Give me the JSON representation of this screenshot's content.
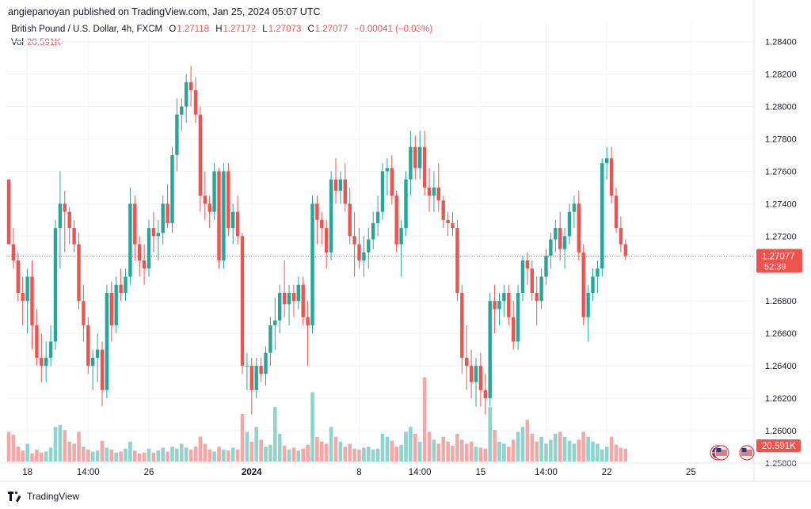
{
  "header": {
    "publisher_line": "angiepanoyan published on TradingView.com, Jan 25, 2024 05:07 UTC"
  },
  "legend": {
    "symbol": "British Pound / U.S. Dollar, 4h, FXCM",
    "o_label": "O",
    "o_value": "1.27118",
    "h_label": "H",
    "h_value": "1.27172",
    "l_label": "L",
    "l_value": "1.27073",
    "c_label": "C",
    "c_value": "1.27077",
    "change": "−0.00041 (−0.03%)",
    "vol_label": "Vol",
    "vol_value": "20.591K"
  },
  "price_badge": {
    "price": "1.27077",
    "countdown": "52:39"
  },
  "volume_badge": {
    "value": "20.591K"
  },
  "footer": {
    "brand": "TradingView"
  },
  "colors": {
    "up": "#26a69a",
    "down": "#ef5350",
    "up_volume": "#8fd3cc",
    "down_volume": "#f4a7a4",
    "grid": "#f0f3fa"
  },
  "icons": [
    "flag-uk-icon",
    "flag-us-icon"
  ],
  "chart_data": {
    "type": "candlestick",
    "ylim": [
      1.258,
      1.2852
    ],
    "yticks": [
      1.26,
      1.262,
      1.264,
      1.266,
      1.268,
      1.272,
      1.274,
      1.276,
      1.278,
      1.28,
      1.282,
      1.284
    ],
    "ytick_labels": [
      "1.26000",
      "1.26200",
      "1.26400",
      "1.26600",
      "1.26800",
      "1.27200",
      "1.27400",
      "1.27600",
      "1.27800",
      "1.28000",
      "1.28200",
      "1.28400"
    ],
    "y_partial_label": "1.25800",
    "last_price": 1.27077,
    "xticks": [
      {
        "label": "18",
        "index": 4
      },
      {
        "label": "14:00",
        "index": 17
      },
      {
        "label": "26",
        "index": 30
      },
      {
        "label": "2024",
        "index": 52,
        "bold": true
      },
      {
        "label": "8",
        "index": 75
      },
      {
        "label": "14:00",
        "index": 88
      },
      {
        "label": "15",
        "index": 101
      },
      {
        "label": "14:00",
        "index": 115
      },
      {
        "label": "22",
        "index": 128
      },
      {
        "label": "25",
        "index": 146
      }
    ],
    "candles": [
      [
        1.2755,
        1.2755,
        1.2715,
        1.2715
      ],
      [
        1.2715,
        1.2725,
        1.27,
        1.2705
      ],
      [
        1.2705,
        1.271,
        1.268,
        1.2685
      ],
      [
        1.2685,
        1.2695,
        1.2665,
        1.268
      ],
      [
        1.268,
        1.27,
        1.266,
        1.2695
      ],
      [
        1.2695,
        1.2705,
        1.265,
        1.2665
      ],
      [
        1.2665,
        1.2675,
        1.264,
        1.2645
      ],
      [
        1.2645,
        1.266,
        1.263,
        1.264
      ],
      [
        1.264,
        1.2655,
        1.263,
        1.2645
      ],
      [
        1.2645,
        1.2665,
        1.264,
        1.2655
      ],
      [
        1.2655,
        1.273,
        1.265,
        1.2725
      ],
      [
        1.2725,
        1.276,
        1.27,
        1.274
      ],
      [
        1.274,
        1.2748,
        1.271,
        1.2735
      ],
      [
        1.2735,
        1.2738,
        1.2715,
        1.2725
      ],
      [
        1.2725,
        1.273,
        1.271,
        1.2715
      ],
      [
        1.2715,
        1.2722,
        1.2675,
        1.268
      ],
      [
        1.268,
        1.269,
        1.2655,
        1.2665
      ],
      [
        1.2665,
        1.267,
        1.2635,
        1.264
      ],
      [
        1.264,
        1.265,
        1.2625,
        1.2645
      ],
      [
        1.2645,
        1.266,
        1.263,
        1.265
      ],
      [
        1.265,
        1.2655,
        1.2615,
        1.2625
      ],
      [
        1.2625,
        1.269,
        1.262,
        1.2685
      ],
      [
        1.2685,
        1.2692,
        1.2655,
        1.2665
      ],
      [
        1.2665,
        1.2695,
        1.266,
        1.269
      ],
      [
        1.269,
        1.27,
        1.268,
        1.2685
      ],
      [
        1.2685,
        1.27,
        1.268,
        1.2695
      ],
      [
        1.2695,
        1.275,
        1.269,
        1.274
      ],
      [
        1.274,
        1.2745,
        1.2705,
        1.2715
      ],
      [
        1.2715,
        1.272,
        1.2695,
        1.2705
      ],
      [
        1.2705,
        1.2715,
        1.269,
        1.27
      ],
      [
        1.27,
        1.273,
        1.2695,
        1.2725
      ],
      [
        1.2725,
        1.2735,
        1.271,
        1.272
      ],
      [
        1.272,
        1.273,
        1.2705,
        1.2722
      ],
      [
        1.2722,
        1.2745,
        1.2715,
        1.274
      ],
      [
        1.274,
        1.2752,
        1.2725,
        1.2728
      ],
      [
        1.2728,
        1.2775,
        1.2722,
        1.277
      ],
      [
        1.277,
        1.2805,
        1.276,
        1.2795
      ],
      [
        1.2795,
        1.2805,
        1.2785,
        1.28
      ],
      [
        1.28,
        1.282,
        1.279,
        1.2815
      ],
      [
        1.2815,
        1.2825,
        1.28,
        1.281
      ],
      [
        1.281,
        1.2818,
        1.279,
        1.2795
      ],
      [
        1.2795,
        1.28,
        1.2735,
        1.2745
      ],
      [
        1.2745,
        1.276,
        1.273,
        1.274
      ],
      [
        1.274,
        1.2745,
        1.2725,
        1.2735
      ],
      [
        1.2735,
        1.2765,
        1.273,
        1.276
      ],
      [
        1.276,
        1.2762,
        1.27,
        1.2705
      ],
      [
        1.2705,
        1.2765,
        1.27,
        1.276
      ],
      [
        1.276,
        1.2765,
        1.272,
        1.2725
      ],
      [
        1.2725,
        1.274,
        1.2715,
        1.2735
      ],
      [
        1.2735,
        1.2745,
        1.2715,
        1.272
      ],
      [
        1.272,
        1.2722,
        1.2635,
        1.264
      ],
      [
        1.264,
        1.2648,
        1.2625,
        1.264
      ],
      [
        1.264,
        1.2645,
        1.261,
        1.2625
      ],
      [
        1.2625,
        1.2645,
        1.262,
        1.264
      ],
      [
        1.264,
        1.2645,
        1.263,
        1.2635
      ],
      [
        1.2635,
        1.2652,
        1.2628,
        1.2648
      ],
      [
        1.2648,
        1.267,
        1.264,
        1.2665
      ],
      [
        1.2665,
        1.2682,
        1.265,
        1.2668
      ],
      [
        1.2668,
        1.269,
        1.266,
        1.2685
      ],
      [
        1.2685,
        1.2705,
        1.267,
        1.2678
      ],
      [
        1.2678,
        1.269,
        1.2665,
        1.2685
      ],
      [
        1.2685,
        1.269,
        1.267,
        1.268
      ],
      [
        1.268,
        1.2695,
        1.2675,
        1.269
      ],
      [
        1.269,
        1.2695,
        1.2665,
        1.267
      ],
      [
        1.267,
        1.268,
        1.264,
        1.2665
      ],
      [
        1.2665,
        1.2745,
        1.266,
        1.274
      ],
      [
        1.274,
        1.2745,
        1.2715,
        1.273
      ],
      [
        1.273,
        1.2735,
        1.2715,
        1.2725
      ],
      [
        1.2725,
        1.273,
        1.27,
        1.271
      ],
      [
        1.271,
        1.276,
        1.2705,
        1.2755
      ],
      [
        1.2755,
        1.2768,
        1.274,
        1.2748
      ],
      [
        1.2748,
        1.276,
        1.274,
        1.2755
      ],
      [
        1.2755,
        1.2765,
        1.2735,
        1.274
      ],
      [
        1.274,
        1.275,
        1.2715,
        1.272
      ],
      [
        1.272,
        1.2735,
        1.2695,
        1.2715
      ],
      [
        1.2715,
        1.2725,
        1.27,
        1.2705
      ],
      [
        1.2705,
        1.272,
        1.2695,
        1.271
      ],
      [
        1.271,
        1.2725,
        1.27,
        1.2718
      ],
      [
        1.2718,
        1.2735,
        1.2712,
        1.2728
      ],
      [
        1.2728,
        1.2745,
        1.272,
        1.2735
      ],
      [
        1.2735,
        1.2765,
        1.273,
        1.276
      ],
      [
        1.276,
        1.2768,
        1.2745,
        1.2762
      ],
      [
        1.2762,
        1.277,
        1.274,
        1.2745
      ],
      [
        1.2745,
        1.2748,
        1.271,
        1.2715
      ],
      [
        1.2715,
        1.273,
        1.2695,
        1.2725
      ],
      [
        1.2725,
        1.276,
        1.272,
        1.2755
      ],
      [
        1.2755,
        1.2785,
        1.2745,
        1.2775
      ],
      [
        1.2775,
        1.2782,
        1.2755,
        1.2762
      ],
      [
        1.2762,
        1.2785,
        1.2755,
        1.2775
      ],
      [
        1.2775,
        1.2785,
        1.2745,
        1.275
      ],
      [
        1.275,
        1.2762,
        1.2735,
        1.2745
      ],
      [
        1.2745,
        1.276,
        1.2735,
        1.275
      ],
      [
        1.275,
        1.2765,
        1.2735,
        1.2742
      ],
      [
        1.2742,
        1.2745,
        1.2725,
        1.273
      ],
      [
        1.273,
        1.2735,
        1.272,
        1.2728
      ],
      [
        1.2728,
        1.2735,
        1.272,
        1.2725
      ],
      [
        1.2725,
        1.273,
        1.268,
        1.2685
      ],
      [
        1.2685,
        1.269,
        1.2635,
        1.2645
      ],
      [
        1.2645,
        1.2665,
        1.2625,
        1.264
      ],
      [
        1.264,
        1.265,
        1.262,
        1.263
      ],
      [
        1.263,
        1.2645,
        1.2615,
        1.264
      ],
      [
        1.264,
        1.2648,
        1.2615,
        1.2625
      ],
      [
        1.2625,
        1.2635,
        1.261,
        1.262
      ],
      [
        1.262,
        1.2685,
        1.2615,
        1.268
      ],
      [
        1.268,
        1.269,
        1.266,
        1.2675
      ],
      [
        1.2675,
        1.2685,
        1.2665,
        1.268
      ],
      [
        1.268,
        1.269,
        1.267,
        1.2685
      ],
      [
        1.2685,
        1.269,
        1.2665,
        1.267
      ],
      [
        1.267,
        1.268,
        1.265,
        1.2655
      ],
      [
        1.2655,
        1.269,
        1.265,
        1.2685
      ],
      [
        1.2685,
        1.2708,
        1.268,
        1.2705
      ],
      [
        1.2705,
        1.271,
        1.269,
        1.27
      ],
      [
        1.27,
        1.2705,
        1.268,
        1.2685
      ],
      [
        1.2685,
        1.2695,
        1.2665,
        1.268
      ],
      [
        1.268,
        1.27,
        1.2675,
        1.2695
      ],
      [
        1.2695,
        1.2712,
        1.269,
        1.2708
      ],
      [
        1.2708,
        1.2722,
        1.27,
        1.2718
      ],
      [
        1.2718,
        1.273,
        1.271,
        1.2725
      ],
      [
        1.2725,
        1.2735,
        1.2705,
        1.2712
      ],
      [
        1.2712,
        1.2725,
        1.27,
        1.272
      ],
      [
        1.272,
        1.274,
        1.2715,
        1.2735
      ],
      [
        1.2735,
        1.2745,
        1.2725,
        1.274
      ],
      [
        1.274,
        1.2748,
        1.2705,
        1.271
      ],
      [
        1.271,
        1.2715,
        1.2665,
        1.267
      ],
      [
        1.267,
        1.269,
        1.2655,
        1.2685
      ],
      [
        1.2685,
        1.27,
        1.268,
        1.2695
      ],
      [
        1.2695,
        1.2705,
        1.2685,
        1.27
      ],
      [
        1.27,
        1.2768,
        1.2695,
        1.2765
      ],
      [
        1.2765,
        1.2775,
        1.2755,
        1.2768
      ],
      [
        1.2768,
        1.2775,
        1.274,
        1.2745
      ],
      [
        1.2745,
        1.275,
        1.2722,
        1.2725
      ],
      [
        1.2725,
        1.2732,
        1.271,
        1.2715
      ],
      [
        1.2715,
        1.2718,
        1.2705,
        1.2708
      ]
    ],
    "volumes": [
      0.3,
      0.27,
      0.15,
      0.11,
      0.18,
      0.08,
      0.12,
      0.09,
      0.1,
      0.14,
      0.35,
      0.37,
      0.32,
      0.2,
      0.18,
      0.3,
      0.15,
      0.12,
      0.1,
      0.11,
      0.21,
      0.14,
      0.12,
      0.09,
      0.1,
      0.13,
      0.2,
      0.11,
      0.08,
      0.09,
      0.13,
      0.09,
      0.11,
      0.14,
      0.1,
      0.15,
      0.13,
      0.18,
      0.14,
      0.12,
      0.15,
      0.25,
      0.18,
      0.12,
      0.1,
      0.15,
      0.12,
      0.11,
      0.14,
      0.12,
      0.48,
      0.3,
      0.2,
      0.35,
      0.22,
      0.15,
      0.17,
      0.55,
      0.28,
      0.16,
      0.12,
      0.14,
      0.11,
      0.13,
      0.17,
      0.7,
      0.25,
      0.2,
      0.18,
      0.35,
      0.25,
      0.2,
      0.15,
      0.18,
      0.13,
      0.12,
      0.14,
      0.15,
      0.12,
      0.13,
      0.28,
      0.25,
      0.21,
      0.15,
      0.17,
      0.3,
      0.35,
      0.28,
      0.2,
      0.85,
      0.3,
      0.22,
      0.18,
      0.25,
      0.2,
      0.16,
      0.28,
      0.22,
      0.18,
      0.2,
      0.15,
      0.14,
      0.13,
      0.55,
      0.32,
      0.2,
      0.18,
      0.15,
      0.22,
      0.3,
      0.35,
      0.42,
      0.28,
      0.2,
      0.25,
      0.18,
      0.22,
      0.28,
      0.3,
      0.25,
      0.21,
      0.18,
      0.22,
      0.3,
      0.25,
      0.2,
      0.18,
      0.12,
      0.15,
      0.25,
      0.17,
      0.14,
      0.13
    ]
  }
}
